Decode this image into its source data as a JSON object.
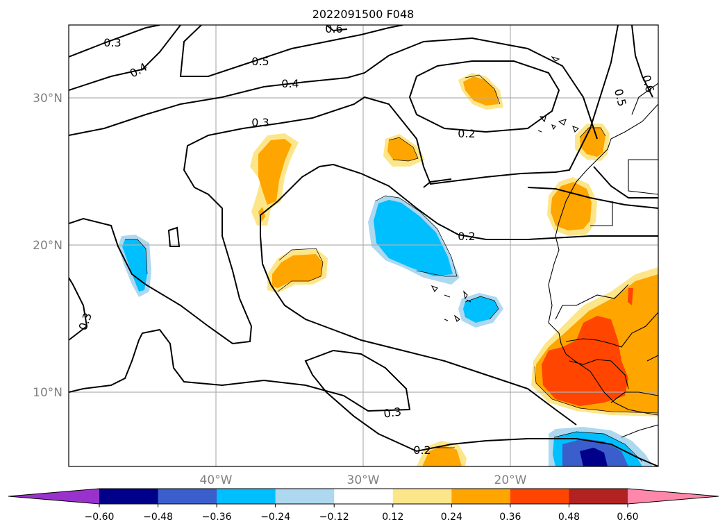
{
  "map": {
    "title": "2022091500 F048",
    "lat_labels": [
      "30°N",
      "20°N",
      "10°N"
    ],
    "lon_labels": [
      "40°W",
      "30°W",
      "20°W"
    ],
    "contour_labels": [
      "0.6",
      "0.3",
      "0.4",
      "0.5",
      "0.4",
      "0.3",
      "0.2",
      "0.2",
      "0.3",
      "0.3",
      "0.2",
      "0.5",
      "0.6"
    ]
  },
  "colorbar": {
    "ticks": [
      "−0.60",
      "−0.48",
      "−0.36",
      "−0.24",
      "−0.12",
      "0.12",
      "0.24",
      "0.36",
      "0.48",
      "0.60"
    ],
    "colors": [
      "#9932cc",
      "#00008b",
      "#3a5fcd",
      "#00bfff",
      "#add8f0",
      "#ffffff",
      "#fde68a",
      "#ffa500",
      "#ff4500",
      "#b22222",
      "#ff88aa"
    ]
  },
  "fill_colors": {
    "light_yellow": "#fde68a",
    "orange": "#ffa500",
    "red_orange": "#ff4500",
    "light_blue": "#add8f0",
    "deep_sky_blue": "#00bfff",
    "royal_blue": "#3a5fcd",
    "dark_blue": "#00008b"
  }
}
